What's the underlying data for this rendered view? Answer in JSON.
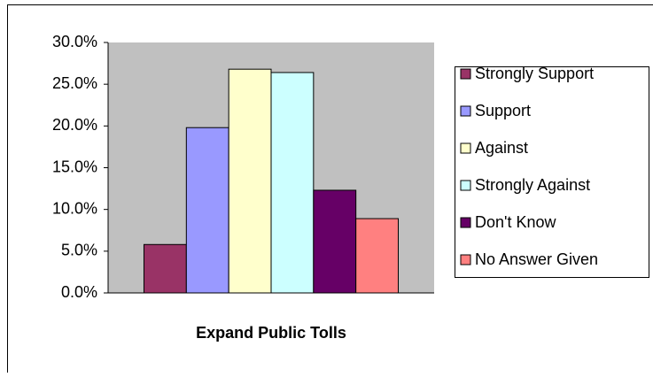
{
  "chart_data": {
    "type": "bar",
    "categories": [
      "Expand Public Tolls"
    ],
    "series": [
      {
        "name": "Strongly Support",
        "color": "#993366",
        "values": [
          5.8
        ]
      },
      {
        "name": "Support",
        "color": "#9999ff",
        "values": [
          19.8
        ]
      },
      {
        "name": "Against",
        "color": "#ffffcc",
        "values": [
          26.8
        ]
      },
      {
        "name": "Strongly Against",
        "color": "#ccffff",
        "values": [
          26.4
        ]
      },
      {
        "name": "Don't Know",
        "color": "#660066",
        "values": [
          12.3
        ]
      },
      {
        "name": "No Answer Given",
        "color": "#ff8080",
        "values": [
          8.9
        ]
      }
    ],
    "ylim": [
      0,
      30
    ],
    "yticks": [
      {
        "value": 0,
        "label": "0.0%"
      },
      {
        "value": 5,
        "label": "5.0%"
      },
      {
        "value": 10,
        "label": "10.0%"
      },
      {
        "value": 15,
        "label": "15.0%"
      },
      {
        "value": 20,
        "label": "20.0%"
      },
      {
        "value": 25,
        "label": "25.0%"
      },
      {
        "value": 30,
        "label": "30.0%"
      }
    ],
    "legend": "right"
  }
}
